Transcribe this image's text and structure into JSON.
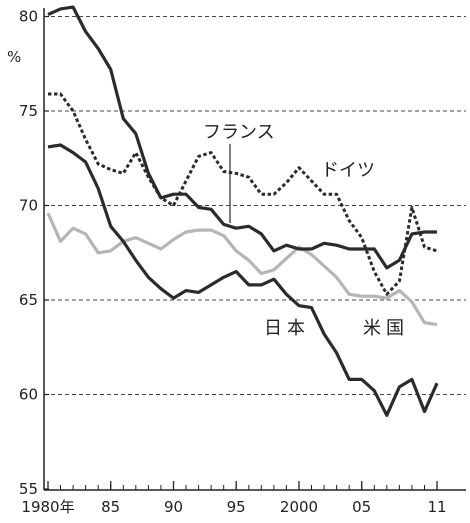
{
  "chart_data": {
    "type": "line",
    "title": "",
    "xlabel": "",
    "ylabel": "%",
    "ylim": [
      55,
      81
    ],
    "xlim": [
      1980,
      2011
    ],
    "yticks": [
      55,
      60,
      65,
      70,
      75,
      80
    ],
    "xticks": [
      {
        "value": 1980,
        "label": "1980年"
      },
      {
        "value": 1985,
        "label": "85"
      },
      {
        "value": 1990,
        "label": "90"
      },
      {
        "value": 1995,
        "label": "95"
      },
      {
        "value": 2000,
        "label": "2000"
      },
      {
        "value": 2005,
        "label": "05"
      },
      {
        "value": 2011,
        "label": "11"
      }
    ],
    "grid": "horizontal dashed",
    "x": [
      1980,
      1981,
      1982,
      1983,
      1984,
      1985,
      1986,
      1987,
      1988,
      1989,
      1990,
      1991,
      1992,
      1993,
      1994,
      1995,
      1996,
      1997,
      1998,
      1999,
      2000,
      2001,
      2002,
      2003,
      2004,
      2005,
      2006,
      2007,
      2008,
      2009,
      2010,
      2011
    ],
    "series": [
      {
        "name": "",
        "color": "#2b2b2b",
        "style": "solid",
        "values": [
          80.1,
          80.4,
          80.5,
          79.2,
          78.3,
          77.2,
          74.6,
          73.8,
          71.7,
          70.4,
          70.6,
          70.6,
          69.9,
          69.8,
          69.0,
          68.8,
          68.9,
          68.5,
          67.6,
          67.9,
          67.7,
          67.7,
          68.0,
          67.9,
          67.7,
          67.7,
          67.7,
          66.7,
          67.1,
          68.5,
          68.6,
          68.6
        ]
      },
      {
        "name": "ドイツ",
        "color": "#2b2b2b",
        "style": "dotted",
        "values": [
          75.9,
          75.9,
          75.0,
          73.5,
          72.2,
          71.9,
          71.7,
          72.8,
          71.5,
          70.4,
          70.0,
          71.3,
          72.6,
          72.8,
          71.8,
          71.7,
          71.5,
          70.6,
          70.6,
          71.2,
          72.0,
          71.3,
          70.6,
          70.6,
          69.2,
          68.3,
          66.5,
          65.3,
          66.0,
          69.9,
          67.8,
          67.6
        ]
      },
      {
        "name": "日本",
        "color": "#2b2b2b",
        "style": "solid",
        "values": [
          73.1,
          73.2,
          72.8,
          72.3,
          70.9,
          68.9,
          68.1,
          67.1,
          66.2,
          65.6,
          65.1,
          65.5,
          65.4,
          65.8,
          66.2,
          66.5,
          65.8,
          65.8,
          66.1,
          65.3,
          64.7,
          64.6,
          63.2,
          62.2,
          60.8,
          60.8,
          60.2,
          58.9,
          60.4,
          60.8,
          59.1,
          60.6
        ]
      },
      {
        "name": "米国",
        "color": "#b5b5b5",
        "style": "solid",
        "values": [
          69.6,
          68.1,
          68.8,
          68.5,
          67.5,
          67.6,
          68.1,
          68.3,
          68.0,
          67.7,
          68.2,
          68.6,
          68.7,
          68.7,
          68.4,
          67.6,
          67.1,
          66.4,
          66.6,
          67.2,
          67.8,
          67.4,
          66.8,
          66.2,
          65.3,
          65.2,
          65.2,
          65.1,
          65.5,
          64.9,
          63.8,
          63.7
        ]
      }
    ],
    "annotations": [
      {
        "id": "label_france",
        "text": "フランス"
      },
      {
        "id": "label_germany",
        "text": "ドイツ"
      },
      {
        "id": "label_japan",
        "text": "日本"
      },
      {
        "id": "label_us",
        "text": "米国"
      }
    ]
  }
}
